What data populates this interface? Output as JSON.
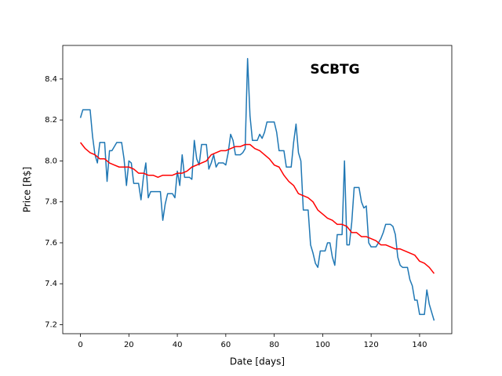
{
  "chart_data": {
    "type": "line",
    "annotation": "SCBTG",
    "x_label": "Date [days]",
    "y_label": "Price [R$]",
    "x": [
      0,
      1,
      2,
      3,
      4,
      5,
      6,
      7,
      8,
      9,
      10,
      11,
      12,
      13,
      14,
      15,
      16,
      17,
      18,
      19,
      20,
      21,
      22,
      23,
      24,
      25,
      26,
      27,
      28,
      29,
      30,
      31,
      32,
      33,
      34,
      35,
      36,
      37,
      38,
      39,
      40,
      41,
      42,
      43,
      44,
      45,
      46,
      47,
      48,
      49,
      50,
      51,
      52,
      53,
      54,
      55,
      56,
      57,
      58,
      59,
      60,
      61,
      62,
      63,
      64,
      65,
      66,
      67,
      68,
      69,
      70,
      71,
      72,
      73,
      74,
      75,
      76,
      77,
      78,
      79,
      80,
      81,
      82,
      83,
      84,
      85,
      86,
      87,
      88,
      89,
      90,
      91,
      92,
      93,
      94,
      95,
      96,
      97,
      98,
      99,
      100,
      101,
      102,
      103,
      104,
      105,
      106,
      107,
      108,
      109,
      110,
      111,
      112,
      113,
      114,
      115,
      116,
      117,
      118,
      119,
      120,
      121,
      122,
      123,
      124,
      125,
      126,
      127,
      128,
      129,
      130,
      131,
      132,
      133,
      134,
      135,
      136,
      137,
      138,
      139,
      140,
      141,
      142,
      143,
      144,
      145,
      146
    ],
    "series": [
      {
        "color": "#1f77b4",
        "values": [
          8.21,
          8.25,
          8.25,
          8.25,
          8.25,
          8.12,
          8.03,
          7.99,
          8.09,
          8.09,
          8.09,
          7.9,
          8.05,
          8.05,
          8.07,
          8.09,
          8.09,
          8.09,
          8.01,
          7.88,
          8.0,
          7.99,
          7.89,
          7.89,
          7.89,
          7.81,
          7.92,
          7.99,
          7.82,
          7.85,
          7.85,
          7.85,
          7.85,
          7.85,
          7.71,
          7.79,
          7.84,
          7.84,
          7.84,
          7.82,
          7.95,
          7.88,
          8.03,
          7.92,
          7.92,
          7.92,
          7.91,
          8.1,
          8.01,
          7.98,
          8.08,
          8.08,
          8.08,
          7.96,
          7.99,
          8.03,
          7.97,
          7.99,
          7.99,
          7.99,
          7.98,
          8.04,
          8.13,
          8.1,
          8.03,
          8.03,
          8.03,
          8.04,
          8.06,
          8.5,
          8.22,
          8.1,
          8.1,
          8.1,
          8.13,
          8.11,
          8.14,
          8.19,
          8.19,
          8.19,
          8.19,
          8.14,
          8.05,
          8.05,
          8.05,
          7.97,
          7.97,
          7.97,
          8.09,
          8.18,
          8.04,
          8.0,
          7.76,
          7.76,
          7.76,
          7.59,
          7.55,
          7.5,
          7.48,
          7.56,
          7.56,
          7.56,
          7.6,
          7.6,
          7.53,
          7.49,
          7.64,
          7.64,
          7.64,
          8.0,
          7.59,
          7.59,
          7.7,
          7.87,
          7.87,
          7.87,
          7.8,
          7.77,
          7.78,
          7.6,
          7.58,
          7.58,
          7.58,
          7.6,
          7.62,
          7.65,
          7.69,
          7.69,
          7.69,
          7.68,
          7.64,
          7.53,
          7.49,
          7.48,
          7.48,
          7.48,
          7.42,
          7.39,
          7.32,
          7.32,
          7.25,
          7.25,
          7.25,
          7.37,
          7.3,
          7.26,
          7.22
        ]
      },
      {
        "color": "red",
        "x": [
          0,
          2,
          4,
          6,
          8,
          10,
          12,
          14,
          16,
          18,
          20,
          22,
          24,
          26,
          28,
          30,
          32,
          34,
          36,
          38,
          40,
          42,
          44,
          46,
          48,
          50,
          52,
          54,
          56,
          58,
          60,
          62,
          64,
          66,
          68,
          70,
          72,
          74,
          76,
          78,
          80,
          82,
          84,
          86,
          88,
          90,
          92,
          94,
          96,
          98,
          100,
          102,
          104,
          106,
          108,
          110,
          112,
          114,
          116,
          118,
          120,
          122,
          124,
          126,
          128,
          130,
          132,
          134,
          136,
          138,
          140,
          142,
          144,
          146
        ],
        "values": [
          8.09,
          8.06,
          8.04,
          8.03,
          8.01,
          8.01,
          7.99,
          7.98,
          7.97,
          7.97,
          7.97,
          7.96,
          7.94,
          7.94,
          7.93,
          7.93,
          7.92,
          7.93,
          7.93,
          7.93,
          7.94,
          7.94,
          7.95,
          7.97,
          7.98,
          7.99,
          8.0,
          8.03,
          8.04,
          8.05,
          8.05,
          8.06,
          8.07,
          8.07,
          8.08,
          8.08,
          8.06,
          8.05,
          8.03,
          8.01,
          7.98,
          7.97,
          7.93,
          7.9,
          7.88,
          7.84,
          7.83,
          7.82,
          7.8,
          7.76,
          7.74,
          7.72,
          7.71,
          7.69,
          7.69,
          7.68,
          7.65,
          7.65,
          7.63,
          7.63,
          7.62,
          7.61,
          7.59,
          7.59,
          7.58,
          7.57,
          7.57,
          7.56,
          7.55,
          7.54,
          7.51,
          7.5,
          7.48,
          7.45
        ]
      }
    ],
    "xlim": [
      -7.3,
      153.3
    ],
    "ylim": [
      7.156,
      8.564
    ],
    "xticks": [
      0,
      20,
      40,
      60,
      80,
      100,
      120,
      140
    ],
    "yticks": [
      7.2,
      7.4,
      7.6,
      7.8,
      {
        "value": 8,
        "label": "8.0"
      },
      8.2,
      8.4
    ],
    "grid": false
  }
}
